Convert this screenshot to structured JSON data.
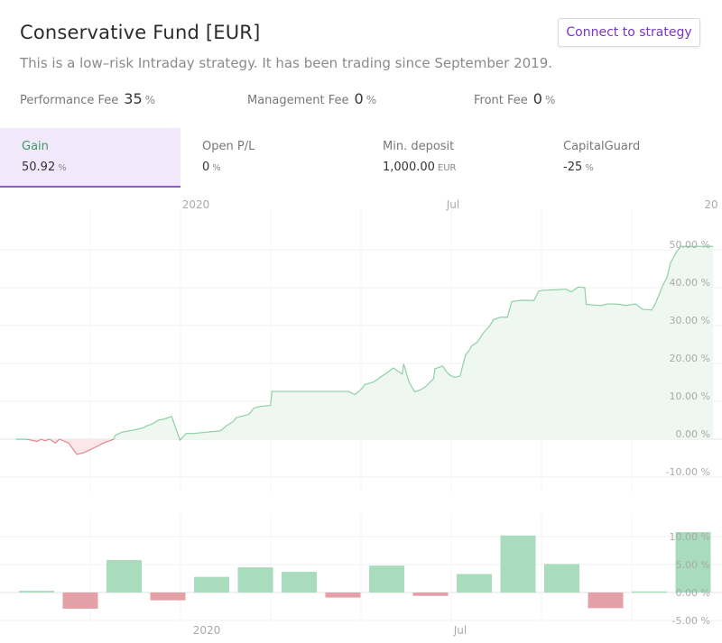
{
  "header": {
    "title": "Conservative Fund [EUR]",
    "subtitle": "This is a low–risk Intraday strategy. It has been trading since September 2019.",
    "connect_label": "Connect to strategy"
  },
  "fees": {
    "performance": {
      "label": "Performance Fee",
      "value": "35",
      "unit": "%"
    },
    "management": {
      "label": "Management Fee",
      "value": "0",
      "unit": "%"
    },
    "front": {
      "label": "Front Fee",
      "value": "0",
      "unit": "%"
    }
  },
  "stats": [
    {
      "label": "Gain",
      "value": "50.92",
      "unit": "%"
    },
    {
      "label": "Open P/L",
      "value": "0",
      "unit": "%"
    },
    {
      "label": "Min. deposit",
      "value": "1,000.00",
      "unit": "EUR"
    },
    {
      "label": "CapitalGuard",
      "value": "-25",
      "unit": "%"
    }
  ],
  "colors": {
    "gain_line": "#8fd0a6",
    "gain_fill": "#eef8f1",
    "loss_line": "#e08890",
    "loss_fill": "#fbe7e9",
    "bar_pos": "#a8dcbc",
    "bar_neg": "#e3a0a6",
    "accent": "#7b35c4"
  },
  "chart_data": [
    {
      "type": "area",
      "top_axis_ticks": [
        "2020",
        "Jul",
        "20"
      ],
      "y_ticks": [
        "50.00 %",
        "40.00 %",
        "30.00 %",
        "20.00 %",
        "10.00 %",
        "0.00 %",
        "-10.00 %"
      ],
      "ylim": [
        -10,
        50
      ],
      "series": [
        {
          "x": [
            0,
            1.5,
            3,
            3.6,
            4.1,
            4.8,
            5.6,
            6.2,
            7.5,
            8.7,
            9.8,
            11.5,
            12.5,
            13.3,
            14,
            14.2,
            15.1,
            17.1,
            18.2,
            18.7,
            19.5,
            20.4,
            21.2,
            22.3,
            23.5,
            24.4,
            25.2,
            25.4,
            29.3,
            30.2,
            31.1,
            31.6,
            32.9,
            33.4,
            34.1,
            35.2,
            36.5,
            36.7,
            38.7,
            39.8,
            40.2,
            40.5,
            41,
            41.6,
            47.7,
            48.6,
            49.6,
            50,
            51.3,
            52.3,
            53.4,
            54.1,
            55.4,
            55.6,
            56.4,
            57.2,
            58.1,
            58.7,
            59.9,
            60.1,
            61.2,
            61.8,
            62.2,
            62.9,
            63.7,
            64.5,
            65.1,
            65.3,
            66.2,
            67.1,
            68,
            68.5,
            69.5,
            70.5,
            71.1,
            72.2,
            72.8,
            73.7,
            74.3,
            75,
            75.6,
            77.9,
            78.9,
            79.7,
            80.7,
            81.6,
            81.8,
            83,
            84,
            84.8,
            85.9,
            86.6,
            87.6,
            87.8,
            88.9,
            89.9,
            91.2,
            91.7,
            92.8,
            93.4,
            93.9,
            94.8,
            95.4,
            95.6,
            96.8,
            97.8,
            98.4,
            99.1,
            100
          ],
          "y": [
            0,
            0,
            -0.6,
            0,
            -0.4,
            0,
            -1,
            0,
            -1,
            -4,
            -3.5,
            -2,
            -1,
            -0.5,
            0,
            1,
            1.8,
            2.5,
            3,
            3.5,
            4,
            5,
            5.3,
            6,
            -0.2,
            1.5,
            1.5,
            1.5,
            2.2,
            3.6,
            4.6,
            5.7,
            6.3,
            6.6,
            8.2,
            8.7,
            8.9,
            12.6,
            12.6,
            12.6,
            12.6,
            12.6,
            12.6,
            12.6,
            12.6,
            11.8,
            13.3,
            14.4,
            15.1,
            16.4,
            17.8,
            18.8,
            17.2,
            19.9,
            15,
            12.5,
            13.1,
            13.8,
            16,
            18.6,
            19.3,
            17.7,
            17,
            16.3,
            16.7,
            22.3,
            23.7,
            24.5,
            25.7,
            28.2,
            30,
            31.6,
            32.2,
            32.2,
            36.3,
            36.6,
            36.7,
            36.6,
            36.6,
            39.1,
            39.3,
            39.5,
            39.6,
            38.9,
            40.2,
            40,
            35.6,
            35.4,
            35.3,
            35.7,
            35.7,
            35.6,
            35.3,
            35.4,
            35.7,
            34.3,
            34.1,
            35.6,
            40.6,
            42.7,
            46.5,
            49.6,
            50.9,
            50.9,
            50.9,
            50.9,
            50.9,
            50.9,
            50.9
          ]
        }
      ]
    },
    {
      "type": "bar",
      "bottom_axis_ticks": [
        "2020",
        "Jul"
      ],
      "y_ticks": [
        "10.00 %",
        "5.00 %",
        "0.00 %",
        "-5.00 %"
      ],
      "ylim": [
        -5,
        10
      ],
      "values": [
        0.3,
        -2.9,
        5.8,
        -1.4,
        2.8,
        4.5,
        3.7,
        -0.9,
        4.8,
        -0.6,
        3.3,
        10.2,
        5.1,
        -2.8,
        0.2,
        10.8
      ]
    }
  ]
}
